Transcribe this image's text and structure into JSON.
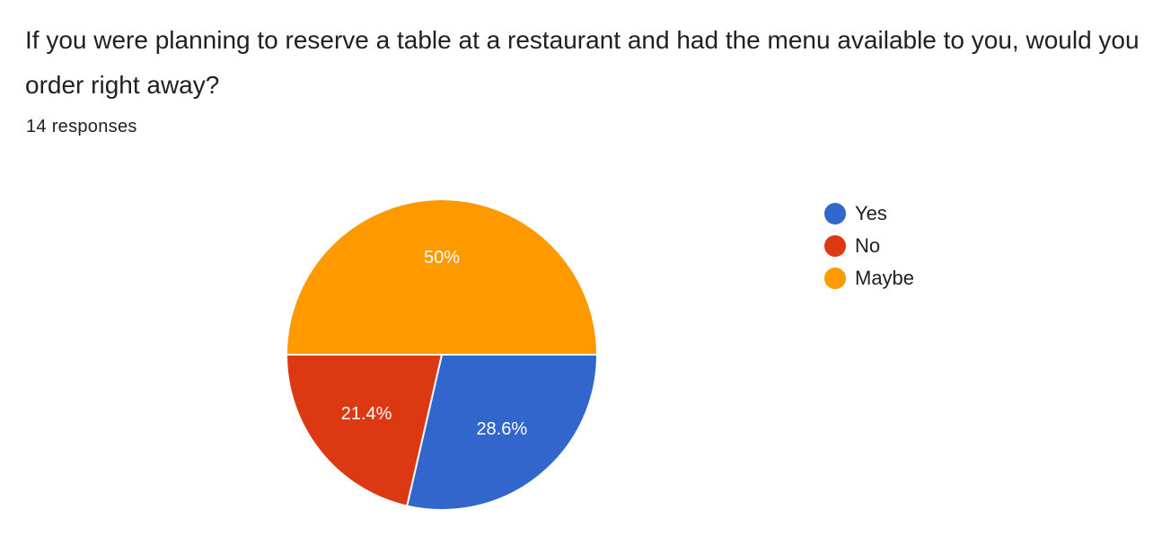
{
  "question": {
    "title": "If you were planning to reserve a table at a restaurant and had the menu available to you, would you order right away?",
    "responses_text": "14 responses"
  },
  "chart_data": {
    "type": "pie",
    "categories": [
      "Yes",
      "No",
      "Maybe"
    ],
    "values": [
      28.6,
      21.4,
      50
    ],
    "labels": [
      "28.6%",
      "21.4%",
      "50%"
    ],
    "colors": [
      "#3366cc",
      "#dc3912",
      "#ff9900"
    ],
    "legend_position": "right"
  }
}
